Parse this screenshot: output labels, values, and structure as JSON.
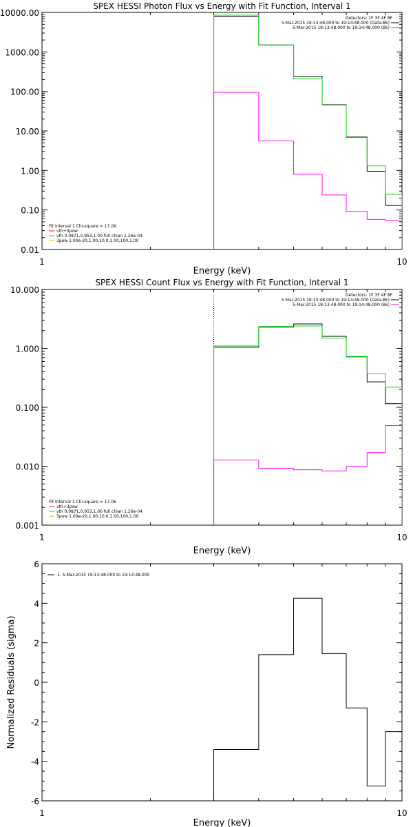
{
  "chart_data": [
    {
      "type": "line",
      "title": "SPEX HESSI Photon Flux vs Energy with Fit Function, Interval 1",
      "xlabel": "Energy (keV)",
      "ylabel": "",
      "x_scale": "log",
      "y_scale": "log",
      "xlim": [
        1,
        10
      ],
      "ylim": [
        0.01,
        10000
      ],
      "x_ticks": [
        {
          "v": 1,
          "label": "1"
        },
        {
          "v": 10,
          "label": "10"
        }
      ],
      "y_ticks": [
        {
          "v": 0.01,
          "label": "0.01"
        },
        {
          "v": 0.1,
          "label": "0.10"
        },
        {
          "v": 1,
          "label": "1.00"
        },
        {
          "v": 10,
          "label": "10.00"
        },
        {
          "v": 100,
          "label": "100.00"
        },
        {
          "v": 1000,
          "label": "1000.00"
        },
        {
          "v": 10000,
          "label": "10000.00"
        }
      ],
      "vline": 3,
      "edges": [
        3,
        4,
        5,
        6,
        7,
        8,
        9,
        10
      ],
      "series": [
        {
          "color": "#000000",
          "values": [
            8000,
            1500,
            240,
            46,
            7,
            0.95,
            0.13
          ]
        },
        {
          "color": "#00dd00",
          "values": [
            8500,
            1500,
            210,
            45,
            6.8,
            1.3,
            0.25
          ]
        },
        {
          "color": "#ff00ff",
          "values": [
            95,
            5.6,
            0.8,
            0.24,
            0.092,
            0.058,
            0.054
          ]
        }
      ],
      "legend_topright": {
        "header": "Detectors: 1F 3F 4F 8F",
        "entries": [
          {
            "text": "5-Mar-2015 19:13:48.000 to 19:14:48.000 (Data-Bk)",
            "color": "#000000"
          },
          {
            "text": "5-Mar-2015 19:13:48.000 to 19:14:48.000 (Bk)",
            "color": "#ff00ff"
          }
        ]
      },
      "legend_bottomleft": {
        "header": "Fit Interval 1    Chi-square = 17.06",
        "entries": [
          {
            "text": "vth+3pow",
            "color": "#ff0000"
          },
          {
            "text": "vth 0.0871,0.953,1.00  full chian 1.26e-04",
            "color": "#00dd00"
          },
          {
            "text": "3pow 1.00e-20,1.00,10.0,1.00,100,1.00",
            "color": "#ffaa00"
          }
        ]
      }
    },
    {
      "type": "line",
      "title": "SPEX HESSI Count Flux vs Energy with Fit Function, Interval 1",
      "xlabel": "Energy (keV)",
      "ylabel": "",
      "x_scale": "log",
      "y_scale": "log",
      "xlim": [
        1,
        10
      ],
      "ylim": [
        0.001,
        10
      ],
      "x_ticks": [
        {
          "v": 1,
          "label": "1"
        },
        {
          "v": 10,
          "label": "10"
        }
      ],
      "y_ticks": [
        {
          "v": 0.001,
          "label": "0.001"
        },
        {
          "v": 0.01,
          "label": "0.010"
        },
        {
          "v": 0.1,
          "label": "0.100"
        },
        {
          "v": 1,
          "label": "1.000"
        },
        {
          "v": 10,
          "label": "10.000"
        }
      ],
      "vline": 3,
      "edges": [
        3,
        4,
        5,
        6,
        7,
        8,
        9,
        10
      ],
      "series": [
        {
          "color": "#000000",
          "values": [
            1.05,
            2.3,
            2.6,
            1.6,
            0.72,
            0.27,
            0.115
          ]
        },
        {
          "color": "#00dd00",
          "values": [
            1.1,
            2.35,
            2.4,
            1.5,
            0.73,
            0.37,
            0.22
          ]
        },
        {
          "color": "#ff00ff",
          "values": [
            0.0128,
            0.0092,
            0.0087,
            0.0083,
            0.01,
            0.017,
            0.049
          ]
        }
      ],
      "legend_topright": {
        "header": "Detectors: 1F 3F 4F 8F",
        "entries": [
          {
            "text": "5-Mar-2015 19:13:48.000 to 19:14:48.000 (Data-Bk)",
            "color": "#000000"
          },
          {
            "text": "5-Mar-2015 19:13:48.000 to 19:14:48.000 (Bk)",
            "color": "#ff00ff"
          }
        ]
      },
      "legend_bottomleft": {
        "header": "Fit Interval 1    Chi-square = 17.06",
        "entries": [
          {
            "text": "vth+3pow",
            "color": "#ff0000"
          },
          {
            "text": "vth 0.0871,0.953,1.00  full chian 1.26e-04",
            "color": "#00dd00"
          },
          {
            "text": "3pow 1.00e-20,1.00,10.0,1.00,100,1.00",
            "color": "#ffaa00"
          }
        ]
      }
    },
    {
      "type": "line",
      "title": "",
      "xlabel": "Energy (keV)",
      "ylabel": "Normalized Residuals (sigma)",
      "x_scale": "log",
      "y_scale": "linear",
      "xlim": [
        1,
        10
      ],
      "ylim": [
        -6,
        6
      ],
      "x_ticks": [
        {
          "v": 1,
          "label": "1"
        },
        {
          "v": 10,
          "label": "10"
        }
      ],
      "y_ticks": [
        {
          "v": -6,
          "label": "-6"
        },
        {
          "v": -4,
          "label": "-4"
        },
        {
          "v": -2,
          "label": "-2"
        },
        {
          "v": 0,
          "label": "0"
        },
        {
          "v": 2,
          "label": "2"
        },
        {
          "v": 4,
          "label": "4"
        },
        {
          "v": 6,
          "label": "6"
        }
      ],
      "edges": [
        3,
        4,
        5,
        6,
        7,
        8,
        9,
        10
      ],
      "series": [
        {
          "color": "#000000",
          "values": [
            -3.4,
            1.4,
            4.25,
            1.45,
            -1.3,
            -5.25,
            -2.5
          ]
        }
      ],
      "legend_topleft": {
        "entries": [
          {
            "text": "1.  5-Mar-2015 19:13:48.000 to 19:14:48.000",
            "color": "#000000"
          }
        ]
      }
    }
  ]
}
